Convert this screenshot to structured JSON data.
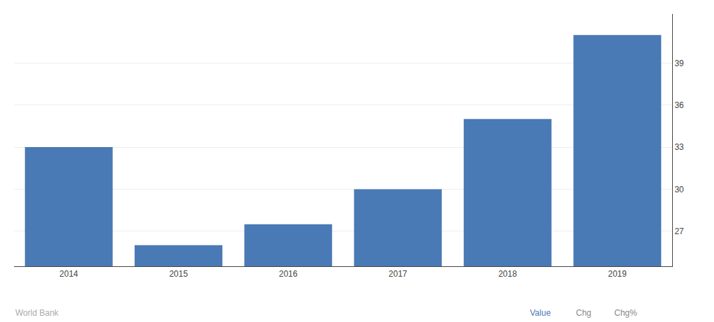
{
  "chart_data": {
    "type": "bar",
    "categories": [
      "2014",
      "2015",
      "2016",
      "2017",
      "2018",
      "2019"
    ],
    "values": [
      33,
      26,
      27.5,
      30,
      35,
      41
    ],
    "color": "#4a7ab5",
    "ylim": [
      24.5,
      42.5
    ],
    "yticks": [
      27,
      30,
      33,
      36,
      39
    ],
    "grid": true,
    "annotations": [
      {
        "text": "World Bank",
        "color": "#aaaaaa"
      },
      {
        "text": "Value",
        "color": "#4a7ab5"
      },
      {
        "text": "Chg",
        "color": "#888888"
      },
      {
        "text": "Chg%",
        "color": "#888888"
      }
    ]
  }
}
